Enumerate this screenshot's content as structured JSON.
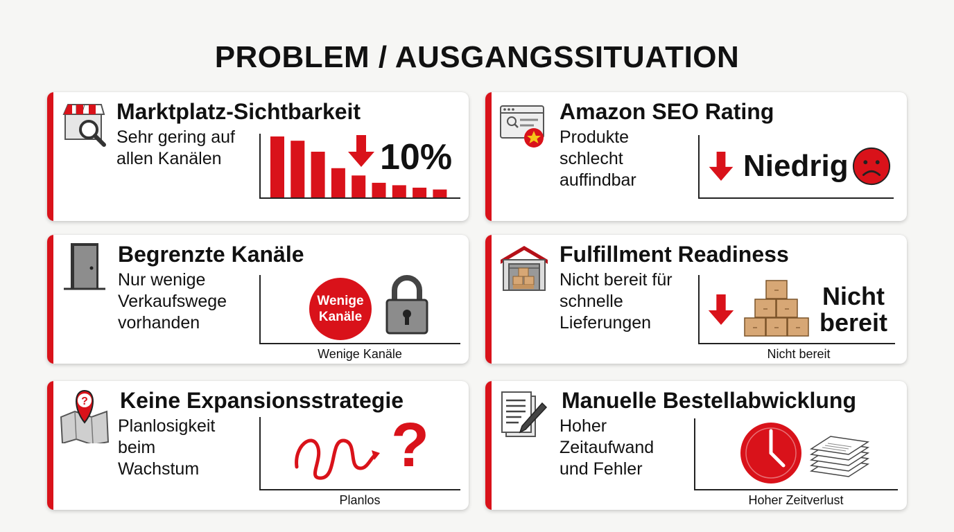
{
  "title": "PROBLEM / AUSGANGSSITUATION",
  "colors": {
    "accent": "#d9121a"
  },
  "cards": [
    {
      "title": "Marktplatz-Sichtbarkeit",
      "desc": [
        "Sehr gering auf",
        "allen Kanälen"
      ],
      "metric": "10%",
      "bars": [
        1.0,
        0.93,
        0.75,
        0.48,
        0.36,
        0.24,
        0.2,
        0.16,
        0.13
      ],
      "icon": "storefront-search-icon"
    },
    {
      "title": "Amazon SEO Rating",
      "desc": [
        "Produkte",
        "schlecht",
        "auffindbar"
      ],
      "metric": "Niedrig",
      "icon": "browser-star-icon"
    },
    {
      "title": "Begrenzte Kanäle",
      "desc": [
        "Nur wenige",
        "Verkaufswege",
        "vorhanden"
      ],
      "badge": [
        "Wenige",
        "Kanäle"
      ],
      "caption": "Wenige Kanäle",
      "icon": "door-icon"
    },
    {
      "title": "Fulfillment Readiness",
      "desc": [
        "Nicht bereit für",
        "schnelle",
        "Lieferungen"
      ],
      "metric": [
        "Nicht",
        "bereit"
      ],
      "caption": "Nicht bereit",
      "icon": "warehouse-icon"
    },
    {
      "title": "Keine Expansionsstrategie",
      "desc": [
        "Planlosigkeit",
        "beim",
        "Wachstum"
      ],
      "caption": "Planlos",
      "icon": "map-pin-question-icon"
    },
    {
      "title": "Manuelle Bestellabwicklung",
      "desc": [
        "Hoher",
        "Zeitaufwand",
        "und Fehler"
      ],
      "caption": "Hoher Zeitverlust",
      "icon": "document-pen-icon"
    }
  ]
}
